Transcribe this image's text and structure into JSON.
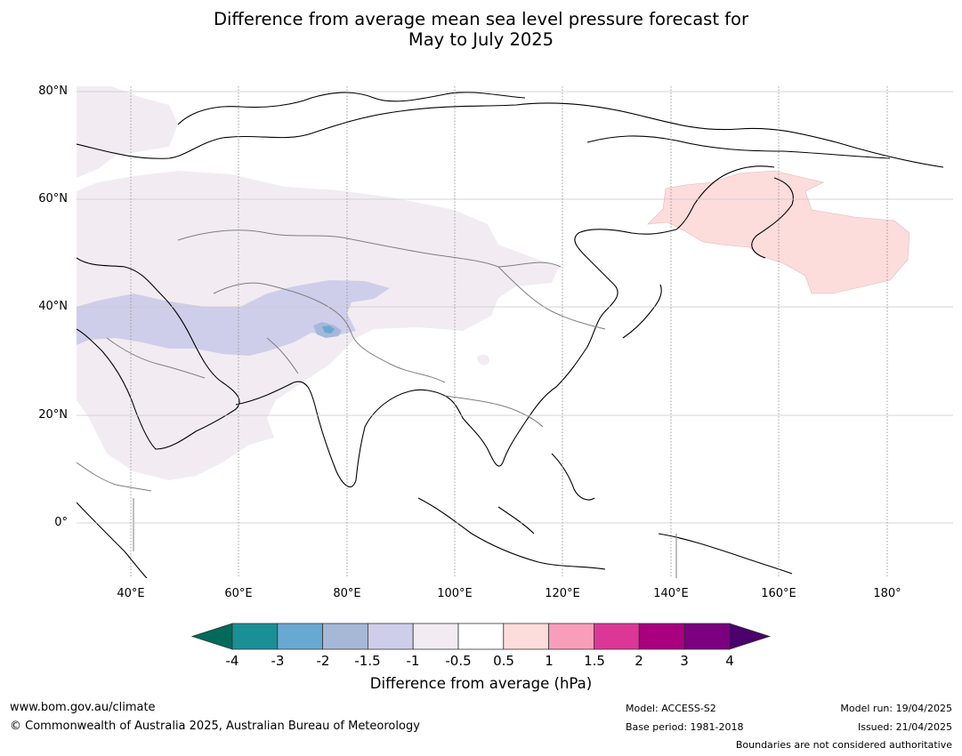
{
  "title": {
    "line1": "Difference from average mean sea level pressure forecast for",
    "line2": "May to July 2025"
  },
  "lat_labels": [
    "80°N",
    "60°N",
    "40°N",
    "20°N",
    "0°"
  ],
  "lon_labels": [
    "40°E",
    "60°E",
    "80°E",
    "100°E",
    "120°E",
    "140°E",
    "160°E",
    "180°"
  ],
  "colorbar": {
    "ticks": [
      "-4",
      "-3",
      "-2",
      "-1.5",
      "-1",
      "-0.5",
      "0.5",
      "1",
      "1.5",
      "2",
      "3",
      "4"
    ],
    "colors": [
      "#006b5a",
      "#1a8f96",
      "#68a9d1",
      "#a6b8d8",
      "#ceceea",
      "#f2ecf2",
      "#ffffff",
      "#fddcdc",
      "#f89ebb",
      "#dc3796",
      "#a8007e",
      "#7a007f",
      "#4b006b"
    ],
    "label": "Difference from average (hPa)"
  },
  "footer": {
    "website": "www.bom.gov.au/climate",
    "copyright": "© Commonwealth of Australia 2025, Australian Bureau of Meteorology",
    "model": "Model: ACCESS-S2",
    "base_period": "Base period: 1981-2018",
    "model_run": "Model run: 19/04/2025",
    "issued": "Issued: 21/04/2025",
    "disclaimer": "Boundaries are not considered authoritative"
  }
}
